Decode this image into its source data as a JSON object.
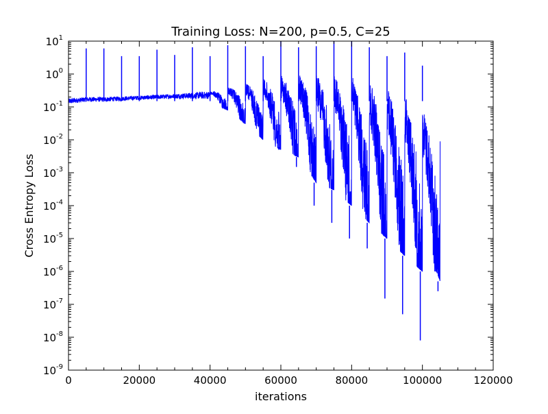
{
  "chart_data": {
    "type": "line",
    "title": "Training Loss: N=200, p=0.5, C=25",
    "xlabel": "iterations",
    "ylabel": "Cross Entropy Loss",
    "xlim": [
      0,
      120000
    ],
    "ylim": [
      1e-09,
      10
    ],
    "yscale": "log",
    "grid": false,
    "legend": "none",
    "x_ticks": [
      0,
      20000,
      40000,
      60000,
      80000,
      100000,
      120000
    ],
    "x_tick_labels": [
      "0",
      "20000",
      "40000",
      "60000",
      "80000",
      "100000",
      "120000"
    ],
    "y_ticks": [
      {
        "value": 10.0,
        "base": "10",
        "exp": "1"
      },
      {
        "value": 1.0,
        "base": "10",
        "exp": "0"
      },
      {
        "value": 0.1,
        "base": "10",
        "exp": "-1"
      },
      {
        "value": 0.01,
        "base": "10",
        "exp": "-2"
      },
      {
        "value": 0.001,
        "base": "10",
        "exp": "-3"
      },
      {
        "value": 0.0001,
        "base": "10",
        "exp": "-4"
      },
      {
        "value": 1e-05,
        "base": "10",
        "exp": "-5"
      },
      {
        "value": 1e-06,
        "base": "10",
        "exp": "-6"
      },
      {
        "value": 1e-07,
        "base": "10",
        "exp": "-7"
      },
      {
        "value": 1e-08,
        "base": "10",
        "exp": "-8"
      },
      {
        "value": 1e-09,
        "base": "10",
        "exp": "-9"
      }
    ],
    "series": [
      {
        "color": "#0000ff",
        "envelope": {
          "x": [
            0,
            5000,
            10000,
            20000,
            30000,
            40000,
            45000,
            50000,
            55000,
            60000,
            65000,
            70000,
            75000,
            80000,
            85000,
            90000,
            95000,
            100000,
            104000,
            105000
          ],
          "upper": [
            0.18,
            0.2,
            0.2,
            0.22,
            0.25,
            0.3,
            0.4,
            0.5,
            0.7,
            0.9,
            1.0,
            1.0,
            0.9,
            0.9,
            0.6,
            0.4,
            0.3,
            0.1,
            0.05,
            0.03
          ],
          "lower": [
            0.1,
            0.12,
            0.12,
            0.14,
            0.15,
            0.13,
            0.08,
            0.03,
            0.01,
            0.005,
            0.003,
            0.0005,
            0.0003,
            0.0001,
            3e-05,
            1e-05,
            3e-06,
            1e-06,
            1e-06,
            5e-07
          ]
        },
        "dips": [
          {
            "x": 60000,
            "y": 0.006
          },
          {
            "x": 65000,
            "y": 0.0015
          },
          {
            "x": 70000,
            "y": 0.0001
          },
          {
            "x": 75000,
            "y": 3e-05
          },
          {
            "x": 80000,
            "y": 1e-05
          },
          {
            "x": 85000,
            "y": 5e-06
          },
          {
            "x": 90000,
            "y": 1.5e-07
          },
          {
            "x": 95000,
            "y": 5e-08
          },
          {
            "x": 100000,
            "y": 8e-09
          },
          {
            "x": 105000,
            "y": 2.5e-07
          }
        ],
        "spikes": [
          {
            "x": 5000,
            "y": 6.0
          },
          {
            "x": 10000,
            "y": 6.0
          },
          {
            "x": 15000,
            "y": 3.5
          },
          {
            "x": 20000,
            "y": 3.5
          },
          {
            "x": 25000,
            "y": 5.5
          },
          {
            "x": 30000,
            "y": 3.8
          },
          {
            "x": 35000,
            "y": 6.5
          },
          {
            "x": 40000,
            "y": 3.5
          },
          {
            "x": 45000,
            "y": 7.5
          },
          {
            "x": 50000,
            "y": 7.0
          },
          {
            "x": 55000,
            "y": 3.5
          },
          {
            "x": 60000,
            "y": 10.0
          },
          {
            "x": 65000,
            "y": 6.5
          },
          {
            "x": 70000,
            "y": 7.0
          },
          {
            "x": 75000,
            "y": 10.0
          },
          {
            "x": 80000,
            "y": 10.0
          },
          {
            "x": 85000,
            "y": 6.5
          },
          {
            "x": 90000,
            "y": 3.5
          },
          {
            "x": 95000,
            "y": 4.5
          },
          {
            "x": 100000,
            "y": 1.8
          }
        ]
      }
    ]
  }
}
